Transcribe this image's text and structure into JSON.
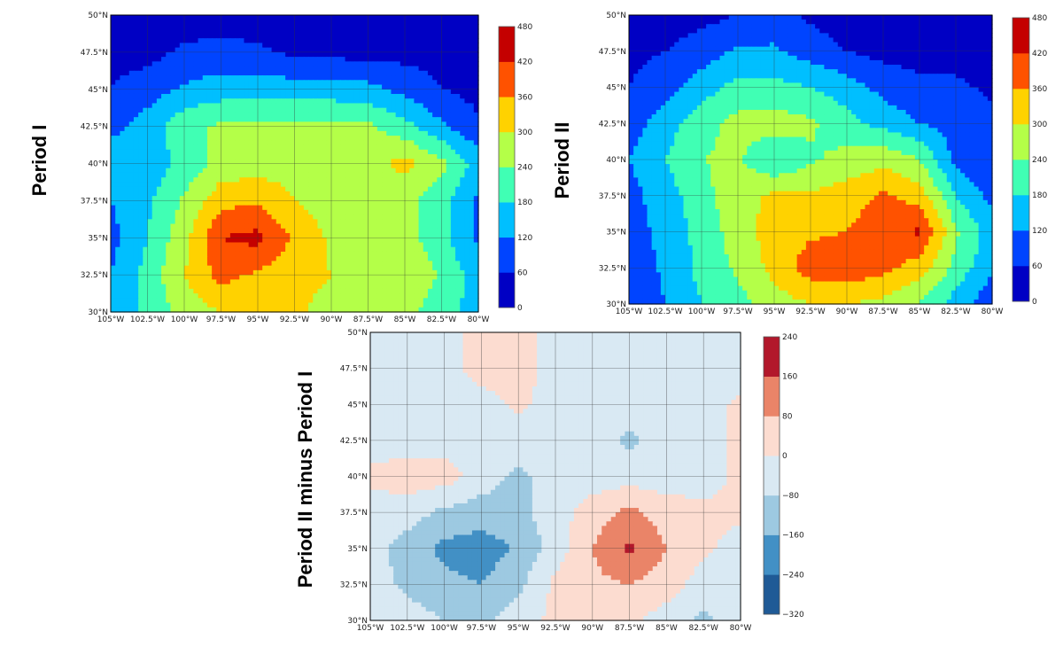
{
  "labels": {
    "map1": "Period I",
    "map2": "Period II",
    "map3": "Period II minus Period I"
  },
  "chart_data": [
    {
      "type": "heatmap",
      "title": "",
      "row_label": "Period I",
      "lon": [
        -105,
        -102.5,
        -100,
        -97.5,
        -95,
        -92.5,
        -90,
        -87.5,
        -85,
        -82.5,
        -80
      ],
      "lat": [
        50,
        47.5,
        45,
        42.5,
        40,
        37.5,
        35,
        32.5,
        30
      ],
      "lon_ticks": [
        "105°W",
        "102.5°W",
        "100°W",
        "97.5°W",
        "95°W",
        "92.5°W",
        "90°W",
        "87.5°W",
        "85°W",
        "82.5°W",
        "80°W"
      ],
      "lat_ticks": [
        "50°N",
        "47.5°N",
        "45°N",
        "42.5°N",
        "40°N",
        "37.5°N",
        "35°N",
        "32.5°N",
        "30°N"
      ],
      "values": [
        [
          30,
          30,
          30,
          30,
          30,
          30,
          30,
          30,
          30,
          30,
          30
        ],
        [
          40,
          40,
          70,
          80,
          70,
          50,
          40,
          40,
          40,
          40,
          40
        ],
        [
          60,
          90,
          130,
          150,
          150,
          150,
          150,
          140,
          100,
          60,
          40
        ],
        [
          100,
          150,
          220,
          250,
          250,
          250,
          250,
          250,
          200,
          130,
          70
        ],
        [
          170,
          140,
          200,
          260,
          270,
          280,
          280,
          280,
          320,
          260,
          150
        ],
        [
          120,
          170,
          250,
          340,
          350,
          300,
          270,
          260,
          260,
          200,
          110
        ],
        [
          100,
          180,
          280,
          420,
          440,
          350,
          290,
          260,
          260,
          200,
          110
        ],
        [
          120,
          200,
          300,
          380,
          350,
          320,
          300,
          280,
          300,
          230,
          150
        ],
        [
          130,
          200,
          260,
          300,
          300,
          310,
          280,
          270,
          260,
          200,
          160
        ]
      ],
      "levels": [
        0,
        60,
        120,
        180,
        240,
        300,
        360,
        420,
        480
      ],
      "colorbar_ticks": [
        "480",
        "420",
        "360",
        "300",
        "240",
        "180",
        "120",
        "60",
        "0"
      ],
      "colors": [
        "#0000c4",
        "#0044ff",
        "#00bfff",
        "#40ffb4",
        "#b4ff48",
        "#ffd200",
        "#ff5200",
        "#c40000"
      ]
    },
    {
      "type": "heatmap",
      "title": "",
      "row_label": "Period II",
      "lon": [
        -105,
        -102.5,
        -100,
        -97.5,
        -95,
        -92.5,
        -90,
        -87.5,
        -85,
        -82.5,
        -80
      ],
      "lat": [
        50,
        47.5,
        45,
        42.5,
        40,
        37.5,
        35,
        32.5,
        30
      ],
      "lon_ticks": [
        "105°W",
        "102.5°W",
        "100°W",
        "97.5°W",
        "95°W",
        "92.5°W",
        "90°W",
        "87.5°W",
        "85°W",
        "82.5°W",
        "80°W"
      ],
      "lat_ticks": [
        "50°N",
        "47.5°N",
        "45°N",
        "42.5°N",
        "40°N",
        "37.5°N",
        "35°N",
        "32.5°N",
        "30°N"
      ],
      "values": [
        [
          30,
          30,
          40,
          60,
          80,
          50,
          30,
          30,
          30,
          30,
          30
        ],
        [
          40,
          60,
          90,
          130,
          130,
          90,
          60,
          40,
          40,
          40,
          40
        ],
        [
          60,
          100,
          150,
          200,
          200,
          180,
          150,
          100,
          70,
          70,
          50
        ],
        [
          90,
          150,
          220,
          260,
          270,
          250,
          200,
          160,
          120,
          100,
          70
        ],
        [
          120,
          180,
          240,
          250,
          180,
          230,
          260,
          280,
          240,
          100,
          60
        ],
        [
          100,
          150,
          220,
          280,
          310,
          310,
          330,
          370,
          330,
          180,
          100
        ],
        [
          90,
          140,
          200,
          270,
          330,
          350,
          360,
          400,
          430,
          250,
          150
        ],
        [
          80,
          130,
          200,
          250,
          320,
          390,
          400,
          380,
          330,
          220,
          130
        ],
        [
          70,
          120,
          180,
          220,
          270,
          300,
          300,
          280,
          240,
          150,
          80
        ]
      ],
      "levels": [
        0,
        60,
        120,
        180,
        240,
        300,
        360,
        420,
        480
      ],
      "colorbar_ticks": [
        "480",
        "420",
        "360",
        "300",
        "240",
        "180",
        "120",
        "60",
        "0"
      ],
      "colors": [
        "#0000c4",
        "#0044ff",
        "#00bfff",
        "#40ffb4",
        "#b4ff48",
        "#ffd200",
        "#ff5200",
        "#c40000"
      ]
    },
    {
      "type": "heatmap",
      "title": "",
      "row_label": "Period II minus Period I",
      "lon": [
        -105,
        -102.5,
        -100,
        -97.5,
        -95,
        -92.5,
        -90,
        -87.5,
        -85,
        -82.5,
        -80
      ],
      "lat": [
        50,
        47.5,
        45,
        42.5,
        40,
        37.5,
        35,
        32.5,
        30
      ],
      "lon_ticks": [
        "105°W",
        "102.5°W",
        "100°W",
        "97.5°W",
        "95°W",
        "92.5°W",
        "90°W",
        "87.5°W",
        "85°W",
        "82.5°W",
        "80°W"
      ],
      "lat_ticks": [
        "50°N",
        "47.5°N",
        "45°N",
        "42.5°N",
        "40°N",
        "37.5°N",
        "35°N",
        "32.5°N",
        "30°N"
      ],
      "values": [
        [
          -40,
          -40,
          -40,
          40,
          40,
          -40,
          -40,
          -40,
          -40,
          -40,
          -40
        ],
        [
          -40,
          -40,
          -40,
          40,
          40,
          -40,
          -40,
          -40,
          -40,
          -40,
          -40
        ],
        [
          -40,
          -40,
          -40,
          -40,
          20,
          -40,
          -40,
          -40,
          -40,
          -40,
          20
        ],
        [
          -40,
          -40,
          -40,
          -40,
          -40,
          -40,
          -40,
          -100,
          -40,
          -40,
          20
        ],
        [
          20,
          40,
          40,
          -40,
          -100,
          -40,
          -40,
          -40,
          -40,
          -40,
          20
        ],
        [
          -40,
          -40,
          -100,
          -120,
          -100,
          -40,
          40,
          100,
          40,
          20,
          20
        ],
        [
          -40,
          -120,
          -180,
          -200,
          -150,
          -40,
          80,
          180,
          80,
          20,
          -40
        ],
        [
          -40,
          -100,
          -140,
          -160,
          -100,
          20,
          60,
          80,
          40,
          -40,
          -40
        ],
        [
          -40,
          -40,
          -80,
          -100,
          -40,
          20,
          40,
          20,
          -40,
          -100,
          -40
        ]
      ],
      "levels": [
        -320,
        -240,
        -160,
        -80,
        0,
        80,
        160,
        240
      ],
      "colorbar_ticks": [
        "240",
        "160",
        "80",
        "0",
        "−80",
        "−160",
        "−240",
        "−320"
      ],
      "colors": [
        "#1f5a96",
        "#4290c5",
        "#9dc9e1",
        "#d9e9f3",
        "#fcdcd0",
        "#ea8468",
        "#b2182b"
      ]
    }
  ]
}
